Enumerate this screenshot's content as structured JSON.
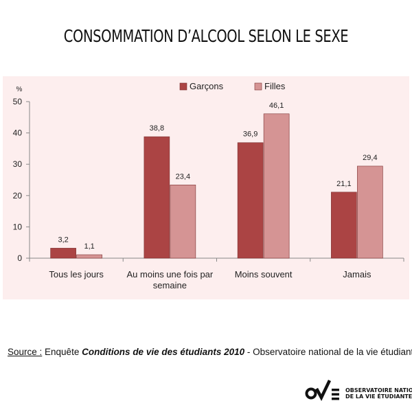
{
  "header": {
    "title": "CONSOMMATION D’ALCOOL SELON LE SEXE"
  },
  "chart_data": {
    "type": "bar",
    "ylabel": "%",
    "ylim": [
      0,
      50
    ],
    "yticks": [
      "0",
      "10",
      "20",
      "30",
      "40",
      "50"
    ],
    "categories": [
      "Tous les jours",
      "Au moins une fois par semaine",
      "Moins souvent",
      "Jamais"
    ],
    "category_lines": [
      [
        "Tous les jours"
      ],
      [
        "Au moins une fois par",
        "semaine"
      ],
      [
        "Moins souvent"
      ],
      [
        "Jamais"
      ]
    ],
    "legend_position": "top-center",
    "series": [
      {
        "name": "Garçons",
        "color": "#ab4444",
        "values": [
          3.2,
          38.8,
          36.9,
          21.1
        ],
        "labels": [
          "3,2",
          "38,8",
          "36,9",
          "21,1"
        ]
      },
      {
        "name": "Filles",
        "color": "#d59494",
        "values": [
          1.1,
          23.4,
          46.1,
          29.4
        ],
        "labels": [
          "1,1",
          "23,4",
          "46,1",
          "29,4"
        ]
      }
    ]
  },
  "footer": {
    "source_label": "Source :",
    "source_pre": " Enquête ",
    "source_title": "Conditions de vie des étudiants 2010",
    "source_post": " - Observatoire national de la vie étudiante",
    "logo_line1": "OBSERVATOIRE NATIONAL",
    "logo_line2": "DE LA VIE ÉTUDIANTE"
  },
  "colors": {
    "panel_bg": "#fdeeee",
    "male": "#ab4444",
    "female": "#d59494"
  }
}
